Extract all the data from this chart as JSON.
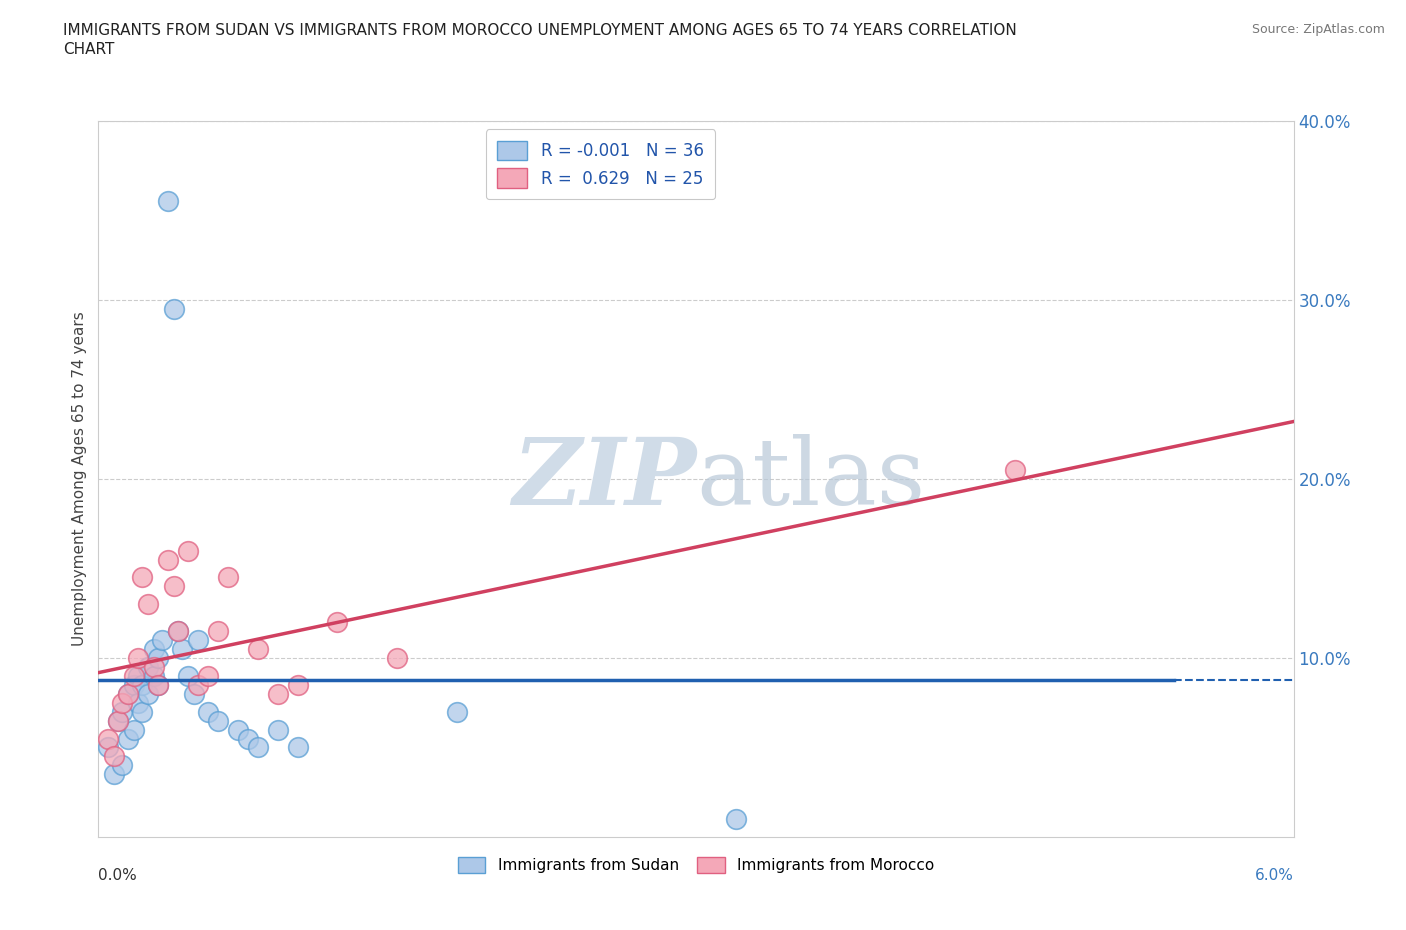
{
  "title_line1": "IMMIGRANTS FROM SUDAN VS IMMIGRANTS FROM MOROCCO UNEMPLOYMENT AMONG AGES 65 TO 74 YEARS CORRELATION",
  "title_line2": "CHART",
  "source": "Source: ZipAtlas.com",
  "ylabel": "Unemployment Among Ages 65 to 74 years",
  "xlim": [
    0.0,
    6.0
  ],
  "ylim": [
    0.0,
    40.0
  ],
  "ytick_values": [
    10.0,
    20.0,
    30.0,
    40.0
  ],
  "legend_r_sudan": "-0.001",
  "legend_n_sudan": "36",
  "legend_r_morocco": "0.629",
  "legend_n_morocco": "25",
  "sudan_face_color": "#adc8e8",
  "morocco_face_color": "#f4a8b8",
  "sudan_edge_color": "#5a9fd4",
  "morocco_edge_color": "#e06080",
  "sudan_line_color": "#2060b0",
  "morocco_line_color": "#d04060",
  "watermark_color": "#d0dce8",
  "background_color": "#ffffff",
  "grid_color": "#cccccc",
  "sudan_points_x": [
    0.05,
    0.08,
    0.1,
    0.12,
    0.12,
    0.15,
    0.15,
    0.18,
    0.18,
    0.2,
    0.2,
    0.22,
    0.22,
    0.25,
    0.25,
    0.28,
    0.28,
    0.3,
    0.3,
    0.32,
    0.35,
    0.38,
    0.4,
    0.42,
    0.45,
    0.48,
    0.5,
    0.55,
    0.6,
    0.7,
    0.75,
    0.8,
    0.9,
    1.0,
    1.8,
    3.2
  ],
  "sudan_points_y": [
    5.0,
    3.5,
    6.5,
    7.0,
    4.0,
    8.0,
    5.5,
    8.5,
    6.0,
    9.0,
    7.5,
    8.5,
    7.0,
    9.5,
    8.0,
    10.5,
    9.0,
    10.0,
    8.5,
    11.0,
    35.5,
    29.5,
    11.5,
    10.5,
    9.0,
    8.0,
    11.0,
    7.0,
    6.5,
    6.0,
    5.5,
    5.0,
    6.0,
    5.0,
    7.0,
    1.0
  ],
  "morocco_points_x": [
    0.05,
    0.08,
    0.1,
    0.12,
    0.15,
    0.18,
    0.2,
    0.22,
    0.25,
    0.28,
    0.3,
    0.35,
    0.38,
    0.4,
    0.45,
    0.5,
    0.55,
    0.6,
    0.65,
    0.8,
    0.9,
    1.0,
    1.2,
    1.5,
    4.6
  ],
  "morocco_points_y": [
    5.5,
    4.5,
    6.5,
    7.5,
    8.0,
    9.0,
    10.0,
    14.5,
    13.0,
    9.5,
    8.5,
    15.5,
    14.0,
    11.5,
    16.0,
    8.5,
    9.0,
    11.5,
    14.5,
    10.5,
    8.0,
    8.5,
    12.0,
    10.0,
    20.5
  ]
}
